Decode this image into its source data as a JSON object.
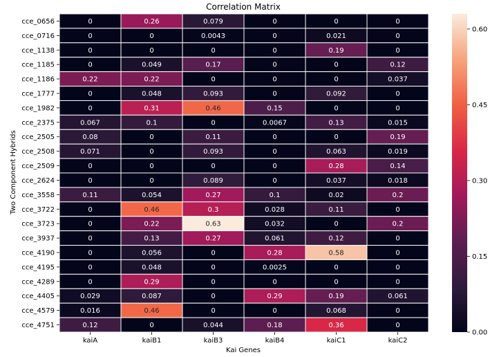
{
  "chart_data": {
    "type": "heatmap",
    "title": "Correlation Matrix",
    "xlabel": "Kai Genes",
    "ylabel": "Two Component Hybrids",
    "x_categories": [
      "kaiA",
      "kaiB1",
      "kaiB3",
      "kaiB4",
      "kaiC1",
      "kaiC2"
    ],
    "y_categories": [
      "cce_0656",
      "cce_0716",
      "cce_1138",
      "cce_1185",
      "cce_1186",
      "cce_1777",
      "cce_1982",
      "cce_2375",
      "cce_2505",
      "cce_2508",
      "cce_2509",
      "cce_2624",
      "cce_3558",
      "cce_3722",
      "cce_3723",
      "cce_3937",
      "cce_4190",
      "cce_4195",
      "cce_4289",
      "cce_4405",
      "cce_4579",
      "cce_4751"
    ],
    "values": [
      [
        "0",
        "0.26",
        "0.079",
        "0",
        "0",
        "0"
      ],
      [
        "0",
        "0",
        "0.0043",
        "0",
        "0.021",
        "0"
      ],
      [
        "0",
        "0",
        "0",
        "0",
        "0.19",
        "0"
      ],
      [
        "0",
        "0.049",
        "0.17",
        "0",
        "0",
        "0.12"
      ],
      [
        "0.22",
        "0.22",
        "0",
        "0",
        "0",
        "0.037"
      ],
      [
        "0",
        "0.048",
        "0.093",
        "0",
        "0.092",
        "0"
      ],
      [
        "0",
        "0.31",
        "0.46",
        "0.15",
        "0",
        "0"
      ],
      [
        "0.067",
        "0.1",
        "0",
        "0.0067",
        "0.13",
        "0.015"
      ],
      [
        "0.08",
        "0",
        "0.11",
        "0",
        "0",
        "0.19"
      ],
      [
        "0.071",
        "0",
        "0.093",
        "0",
        "0.063",
        "0.019"
      ],
      [
        "0",
        "0",
        "0",
        "0",
        "0.28",
        "0.14"
      ],
      [
        "0",
        "0",
        "0.089",
        "0",
        "0.037",
        "0.018"
      ],
      [
        "0.11",
        "0.054",
        "0.27",
        "0.1",
        "0.02",
        "0.2"
      ],
      [
        "0",
        "0.46",
        "0.3",
        "0.028",
        "0.11",
        "0"
      ],
      [
        "0",
        "0.22",
        "0.63",
        "0.032",
        "0",
        "0.2"
      ],
      [
        "0",
        "0.13",
        "0.27",
        "0.061",
        "0.12",
        "0"
      ],
      [
        "0",
        "0.056",
        "0",
        "0.28",
        "0.58",
        "0"
      ],
      [
        "0",
        "0.048",
        "0",
        "0.0025",
        "0",
        "0"
      ],
      [
        "0",
        "0.29",
        "0",
        "0",
        "0",
        "0"
      ],
      [
        "0.029",
        "0.087",
        "0",
        "0.29",
        "0.19",
        "0.061"
      ],
      [
        "0.016",
        "0.46",
        "0",
        "0",
        "0.068",
        "0"
      ],
      [
        "0.12",
        "0",
        "0.044",
        "0.18",
        "0.36",
        "0"
      ]
    ],
    "vmin": 0,
    "vmax": 0.63,
    "colorbar": {
      "ticks": [
        "0.00",
        "0.15",
        "0.30",
        "0.45",
        "0.60"
      ],
      "position": "right"
    },
    "colormap": {
      "name": "rocket",
      "stops": [
        "#03051a",
        "#2f1b3b",
        "#5c1e51",
        "#a11a5b",
        "#d92847",
        "#f06043",
        "#f6a47c",
        "#faebdd"
      ]
    },
    "annotations": true,
    "grid": "white cell borders"
  }
}
